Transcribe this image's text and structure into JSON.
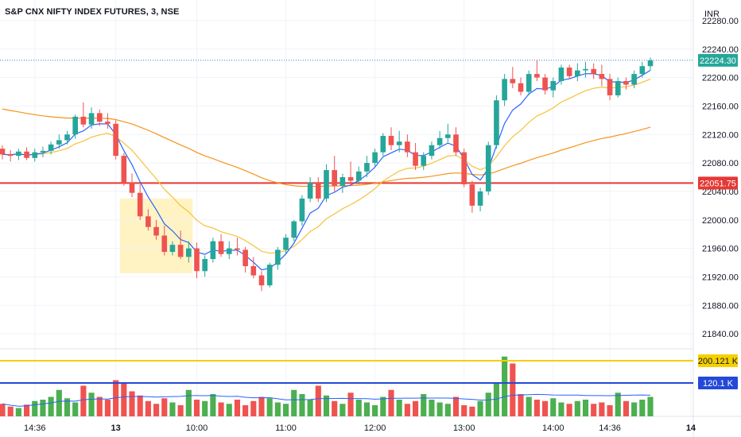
{
  "header": {
    "title": "S&P CNX NIFTY INDEX FUTURES, 3, NSE",
    "currency": "INR"
  },
  "colors": {
    "up": "#26a69a",
    "down": "#ef5350",
    "vol_up": "#4caf50",
    "vol_down": "#ef5350",
    "ema_fast": "#2962ff",
    "ema_slow": "#f7c23a",
    "ema_long": "#f7931a",
    "hline_price": "#e53935",
    "hline_vol_yellow": "#f5d000",
    "hline_vol_blue": "#2449d8",
    "highlight": "#fff3c4",
    "last_price_line": "#2e82d9"
  },
  "chart_data": {
    "type": "candlestick",
    "interval": "3m",
    "price_axis": {
      "min": 21820,
      "max": 22300,
      "ticks": [
        22280,
        22240,
        22200,
        22160,
        22120,
        22080,
        22040,
        22000,
        21960,
        21920,
        21880,
        21840
      ]
    },
    "time_axis": {
      "labels": [
        {
          "bar": 4,
          "text": "14:36",
          "bold": false
        },
        {
          "bar": 14,
          "text": "13",
          "bold": true
        },
        {
          "bar": 24,
          "text": "10:00",
          "bold": false
        },
        {
          "bar": 35,
          "text": "11:00",
          "bold": false
        },
        {
          "bar": 46,
          "text": "12:00",
          "bold": false
        },
        {
          "bar": 57,
          "text": "13:00",
          "bold": false
        },
        {
          "bar": 68,
          "text": "14:00",
          "bold": false
        },
        {
          "bar": 75,
          "text": "14:36",
          "bold": false
        },
        {
          "bar": 85,
          "text": "14",
          "bold": true
        }
      ]
    },
    "candles": [
      [
        22100,
        22105,
        22085,
        22092
      ],
      [
        22092,
        22098,
        22082,
        22090
      ],
      [
        22090,
        22100,
        22084,
        22096
      ],
      [
        22096,
        22102,
        22084,
        22087
      ],
      [
        22087,
        22100,
        22082,
        22095
      ],
      [
        22095,
        22103,
        22088,
        22097
      ],
      [
        22097,
        22110,
        22092,
        22106
      ],
      [
        22106,
        22120,
        22100,
        22112
      ],
      [
        22112,
        22125,
        22106,
        22120
      ],
      [
        22120,
        22148,
        22114,
        22145
      ],
      [
        22145,
        22165,
        22130,
        22134
      ],
      [
        22134,
        22158,
        22128,
        22150
      ],
      [
        22150,
        22155,
        22132,
        22138
      ],
      [
        22138,
        22150,
        22128,
        22135
      ],
      [
        22135,
        22140,
        22085,
        22090
      ],
      [
        22090,
        22094,
        22048,
        22052
      ],
      [
        22052,
        22065,
        22032,
        22038
      ],
      [
        22038,
        22050,
        22000,
        22005
      ],
      [
        22005,
        22015,
        21985,
        21990
      ],
      [
        21990,
        22000,
        21972,
        21978
      ],
      [
        21978,
        21992,
        21950,
        21955
      ],
      [
        21955,
        21970,
        21950,
        21965
      ],
      [
        21965,
        21985,
        21945,
        21948
      ],
      [
        21948,
        21970,
        21940,
        21960
      ],
      [
        21960,
        21968,
        21918,
        21928
      ],
      [
        21928,
        21950,
        21920,
        21945
      ],
      [
        21945,
        21975,
        21940,
        21970
      ],
      [
        21970,
        21980,
        21948,
        21952
      ],
      [
        21952,
        21970,
        21945,
        21960
      ],
      [
        21960,
        21975,
        21950,
        21958
      ],
      [
        21958,
        21962,
        21926,
        21935
      ],
      [
        21935,
        21948,
        21918,
        21922
      ],
      [
        21922,
        21928,
        21900,
        21908
      ],
      [
        21908,
        21940,
        21905,
        21937
      ],
      [
        21937,
        21962,
        21930,
        21958
      ],
      [
        21958,
        21980,
        21952,
        21975
      ],
      [
        21975,
        22000,
        21970,
        21998
      ],
      [
        21998,
        22035,
        21992,
        22030
      ],
      [
        22030,
        22060,
        22025,
        22052
      ],
      [
        22052,
        22060,
        22025,
        22030
      ],
      [
        22030,
        22078,
        22025,
        22070
      ],
      [
        22070,
        22090,
        22040,
        22048
      ],
      [
        22048,
        22065,
        22038,
        22060
      ],
      [
        22060,
        22082,
        22048,
        22055
      ],
      [
        22055,
        22075,
        22050,
        22068
      ],
      [
        22068,
        22090,
        22060,
        22080
      ],
      [
        22080,
        22100,
        22075,
        22095
      ],
      [
        22095,
        22122,
        22090,
        22118
      ],
      [
        22118,
        22130,
        22098,
        22105
      ],
      [
        22105,
        22125,
        22095,
        22110
      ],
      [
        22110,
        22120,
        22088,
        22095
      ],
      [
        22095,
        22108,
        22070,
        22076
      ],
      [
        22076,
        22095,
        22070,
        22090
      ],
      [
        22090,
        22110,
        22085,
        22105
      ],
      [
        22105,
        22125,
        22100,
        22115
      ],
      [
        22115,
        22135,
        22108,
        22120
      ],
      [
        22120,
        22130,
        22090,
        22095
      ],
      [
        22095,
        22100,
        22046,
        22050
      ],
      [
        22050,
        22055,
        22010,
        22020
      ],
      [
        22020,
        22045,
        22012,
        22040
      ],
      [
        22040,
        22110,
        22035,
        22105
      ],
      [
        22105,
        22175,
        22100,
        22168
      ],
      [
        22168,
        22205,
        22160,
        22198
      ],
      [
        22198,
        22215,
        22185,
        22192
      ],
      [
        22192,
        22200,
        22175,
        22180
      ],
      [
        22180,
        22210,
        22175,
        22205
      ],
      [
        22205,
        22225,
        22195,
        22200
      ],
      [
        22200,
        22205,
        22176,
        22182
      ],
      [
        22182,
        22200,
        22172,
        22195
      ],
      [
        22195,
        22218,
        22190,
        22214
      ],
      [
        22214,
        22218,
        22198,
        22202
      ],
      [
        22202,
        22220,
        22195,
        22210
      ],
      [
        22210,
        22222,
        22200,
        22212
      ],
      [
        22212,
        22220,
        22198,
        22205
      ],
      [
        22205,
        22218,
        22188,
        22198
      ],
      [
        22198,
        22205,
        22168,
        22175
      ],
      [
        22175,
        22200,
        22172,
        22195
      ],
      [
        22195,
        22200,
        22183,
        22190
      ],
      [
        22190,
        22210,
        22185,
        22205
      ],
      [
        22205,
        22222,
        22200,
        22216
      ],
      [
        22216,
        22228,
        22210,
        22224
      ]
    ],
    "volume_axis": {
      "max": 240
    },
    "volume": [
      45,
      35,
      30,
      42,
      55,
      60,
      70,
      95,
      65,
      50,
      110,
      85,
      70,
      60,
      130,
      120,
      90,
      75,
      55,
      45,
      65,
      50,
      40,
      95,
      60,
      55,
      80,
      50,
      45,
      60,
      40,
      55,
      70,
      65,
      50,
      45,
      95,
      80,
      60,
      110,
      75,
      55,
      45,
      85,
      60,
      50,
      40,
      70,
      95,
      60,
      45,
      55,
      80,
      60,
      50,
      45,
      70,
      40,
      35,
      55,
      85,
      120,
      215,
      190,
      80,
      70,
      60,
      55,
      65,
      50,
      45,
      55,
      60,
      45,
      50,
      40,
      85,
      55,
      50,
      60,
      70
    ],
    "indicators": [
      {
        "name": "EMA fast",
        "color": "#2962ff"
      },
      {
        "name": "EMA slow",
        "color": "#f7c23a"
      },
      {
        "name": "EMA long",
        "color": "#f7931a"
      }
    ],
    "price_lines": [
      {
        "value": 22051.75,
        "label": "22051.75",
        "color": "#e53935"
      },
      {
        "value": 22224.3,
        "label": "22224.30",
        "color": "#2e82d9"
      }
    ],
    "volume_lines": [
      {
        "value": 200.121,
        "label": "200.121 K",
        "color": "#f5d000"
      },
      {
        "value": 120.1,
        "label": "120.1 K",
        "color": "#2449d8"
      }
    ],
    "highlight_box": {
      "bar_from": 15,
      "bar_to": 23,
      "price_from": 21925,
      "price_to": 22030
    }
  }
}
